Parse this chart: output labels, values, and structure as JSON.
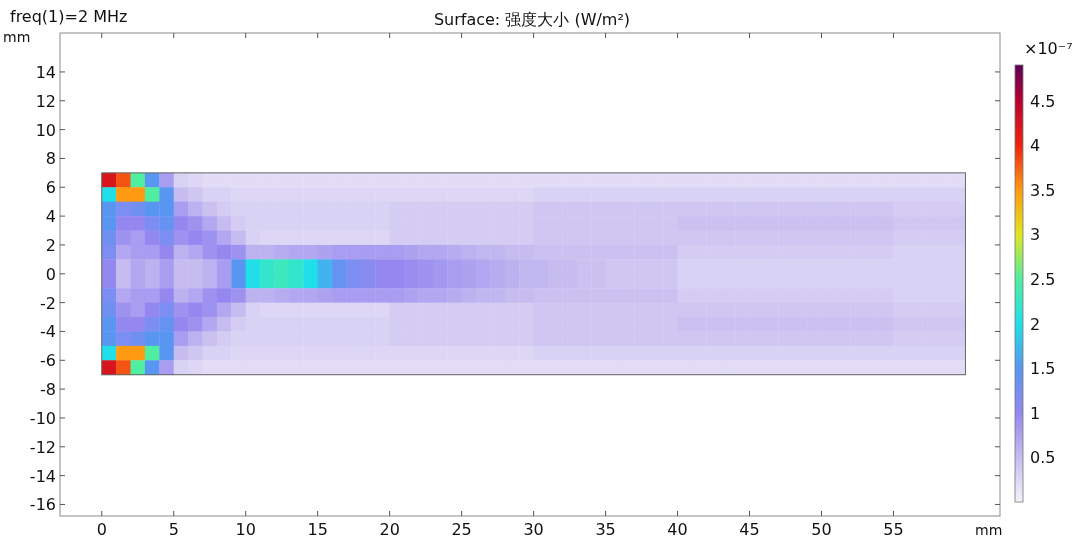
{
  "chart_data": {
    "type": "heatmap",
    "title": "Surface: 强度大小 (W/m²)",
    "subtitle": "freq(1)=2 MHz",
    "xlabel": "mm",
    "ylabel": "mm",
    "clabel": "×10⁻⁷",
    "xlim": [
      -2.9,
      62.4
    ],
    "ylim": [
      -16.8,
      16.7
    ],
    "xticks": [
      0,
      5,
      10,
      15,
      20,
      25,
      30,
      35,
      40,
      45,
      50,
      55
    ],
    "yticks": [
      -16,
      -14,
      -12,
      -10,
      -8,
      -6,
      -4,
      -2,
      0,
      2,
      4,
      6,
      8,
      10,
      12,
      14
    ],
    "clim": [
      0,
      4.9
    ],
    "cticks": [
      0.5,
      1,
      1.5,
      2,
      2.5,
      3,
      3.5,
      4,
      4.5
    ],
    "x": [
      0.5,
      1.5,
      2.5,
      3.5,
      4.5,
      5.5,
      6.5,
      7.5,
      8.5,
      9.5,
      10.5,
      11.5,
      12.5,
      13.5,
      14.5,
      15.5,
      16.5,
      17.5,
      18.5,
      19.5,
      20.5,
      21.5,
      22.5,
      23.5,
      24.5,
      25.5,
      26.5,
      27.5,
      28.5,
      29.5,
      30.5,
      31.5,
      32.5,
      33.5,
      34.5,
      35.5,
      36.5,
      37.5,
      38.5,
      39.5,
      40.5,
      41.5,
      42.5,
      43.5,
      44.5,
      45.5,
      46.5,
      47.5,
      48.5,
      49.5,
      50.5,
      51.5,
      52.5,
      53.5,
      54.5,
      55.5,
      56.5,
      57.5,
      58.5,
      59.5
    ],
    "y": [
      6.5,
      5.5,
      4.5,
      3.5,
      2.5,
      1.5,
      0.5,
      -0.5,
      -1.5,
      -2.5,
      -3.5,
      -4.5,
      -5.5,
      -6.5
    ],
    "cells": [
      [
        4.2,
        3.8,
        2.5,
        1.5,
        0.8,
        0.3,
        0.25,
        0.2,
        0.2,
        0.2,
        0.2,
        0.2,
        0.2,
        0.2,
        0.2,
        0.2,
        0.2,
        0.2,
        0.2,
        0.2,
        0.2,
        0.2,
        0.2,
        0.2,
        0.2,
        0.2,
        0.2,
        0.2,
        0.2,
        0.2,
        0.2,
        0.2,
        0.2,
        0.2,
        0.2,
        0.2,
        0.2,
        0.2,
        0.2,
        0.2,
        0.2,
        0.2,
        0.2,
        0.2,
        0.2,
        0.2,
        0.2,
        0.2,
        0.2,
        0.2,
        0.2,
        0.2,
        0.2,
        0.2,
        0.2,
        0.2,
        0.2,
        0.2,
        0.2,
        0.2
      ],
      [
        2.0,
        3.5,
        3.5,
        2.5,
        1.5,
        0.5,
        0.4,
        0.3,
        0.3,
        0.25,
        0.25,
        0.25,
        0.25,
        0.25,
        0.25,
        0.25,
        0.25,
        0.25,
        0.25,
        0.25,
        0.25,
        0.25,
        0.25,
        0.25,
        0.25,
        0.25,
        0.25,
        0.25,
        0.25,
        0.25,
        0.3,
        0.3,
        0.3,
        0.3,
        0.3,
        0.3,
        0.3,
        0.3,
        0.3,
        0.3,
        0.3,
        0.3,
        0.3,
        0.3,
        0.3,
        0.3,
        0.3,
        0.3,
        0.3,
        0.3,
        0.3,
        0.3,
        0.3,
        0.3,
        0.3,
        0.3,
        0.3,
        0.3,
        0.3,
        0.3
      ],
      [
        1.5,
        1.2,
        1.3,
        1.5,
        1.5,
        0.8,
        0.6,
        0.45,
        0.35,
        0.3,
        0.3,
        0.3,
        0.3,
        0.3,
        0.3,
        0.3,
        0.3,
        0.3,
        0.3,
        0.3,
        0.35,
        0.35,
        0.35,
        0.35,
        0.35,
        0.35,
        0.35,
        0.35,
        0.35,
        0.35,
        0.4,
        0.4,
        0.4,
        0.4,
        0.4,
        0.4,
        0.4,
        0.4,
        0.4,
        0.4,
        0.4,
        0.4,
        0.4,
        0.4,
        0.4,
        0.4,
        0.4,
        0.4,
        0.4,
        0.4,
        0.4,
        0.4,
        0.4,
        0.4,
        0.4,
        0.35,
        0.35,
        0.35,
        0.35,
        0.35
      ],
      [
        1.5,
        1.0,
        1.0,
        1.2,
        1.4,
        1.0,
        0.9,
        0.7,
        0.5,
        0.35,
        0.3,
        0.3,
        0.3,
        0.3,
        0.3,
        0.3,
        0.3,
        0.3,
        0.3,
        0.3,
        0.35,
        0.35,
        0.35,
        0.35,
        0.35,
        0.35,
        0.35,
        0.35,
        0.35,
        0.35,
        0.4,
        0.4,
        0.4,
        0.4,
        0.4,
        0.4,
        0.4,
        0.4,
        0.4,
        0.4,
        0.45,
        0.45,
        0.45,
        0.45,
        0.45,
        0.45,
        0.45,
        0.45,
        0.45,
        0.45,
        0.45,
        0.45,
        0.45,
        0.45,
        0.45,
        0.4,
        0.4,
        0.4,
        0.4,
        0.4
      ],
      [
        1.3,
        0.9,
        0.8,
        1.0,
        1.2,
        0.9,
        1.0,
        0.9,
        0.7,
        0.5,
        0.3,
        0.25,
        0.25,
        0.25,
        0.25,
        0.25,
        0.25,
        0.25,
        0.25,
        0.25,
        0.35,
        0.35,
        0.35,
        0.35,
        0.35,
        0.35,
        0.35,
        0.35,
        0.35,
        0.35,
        0.4,
        0.4,
        0.4,
        0.4,
        0.4,
        0.4,
        0.4,
        0.4,
        0.4,
        0.4,
        0.4,
        0.4,
        0.4,
        0.4,
        0.4,
        0.4,
        0.4,
        0.4,
        0.4,
        0.4,
        0.4,
        0.4,
        0.4,
        0.4,
        0.4,
        0.35,
        0.35,
        0.35,
        0.35,
        0.35
      ],
      [
        1.2,
        0.7,
        0.8,
        0.8,
        1.0,
        0.6,
        0.7,
        0.9,
        1.0,
        0.9,
        0.6,
        0.6,
        0.65,
        0.7,
        0.7,
        0.75,
        0.8,
        0.8,
        0.8,
        0.8,
        0.8,
        0.75,
        0.7,
        0.7,
        0.65,
        0.6,
        0.55,
        0.55,
        0.5,
        0.5,
        0.45,
        0.45,
        0.45,
        0.45,
        0.45,
        0.45,
        0.45,
        0.45,
        0.45,
        0.45,
        0.35,
        0.35,
        0.35,
        0.35,
        0.35,
        0.35,
        0.35,
        0.35,
        0.35,
        0.35,
        0.35,
        0.35,
        0.35,
        0.35,
        0.35,
        0.3,
        0.3,
        0.3,
        0.3,
        0.3
      ],
      [
        1.0,
        0.5,
        0.7,
        0.6,
        0.8,
        0.5,
        0.5,
        0.6,
        0.8,
        1.5,
        2.0,
        2.2,
        2.3,
        2.2,
        2.0,
        1.7,
        1.4,
        1.2,
        1.1,
        1.0,
        1.0,
        0.95,
        0.9,
        0.85,
        0.8,
        0.75,
        0.7,
        0.65,
        0.6,
        0.55,
        0.55,
        0.5,
        0.5,
        0.45,
        0.45,
        0.4,
        0.4,
        0.4,
        0.4,
        0.4,
        0.3,
        0.3,
        0.3,
        0.3,
        0.3,
        0.3,
        0.3,
        0.3,
        0.3,
        0.3,
        0.3,
        0.3,
        0.3,
        0.3,
        0.3,
        0.3,
        0.3,
        0.3,
        0.3,
        0.3
      ],
      [
        1.0,
        0.5,
        0.7,
        0.6,
        0.8,
        0.5,
        0.5,
        0.6,
        0.8,
        1.5,
        2.0,
        2.2,
        2.3,
        2.2,
        2.0,
        1.7,
        1.4,
        1.2,
        1.1,
        1.0,
        1.0,
        0.95,
        0.9,
        0.85,
        0.8,
        0.75,
        0.7,
        0.65,
        0.6,
        0.55,
        0.55,
        0.5,
        0.5,
        0.45,
        0.45,
        0.4,
        0.4,
        0.4,
        0.4,
        0.4,
        0.3,
        0.3,
        0.3,
        0.3,
        0.3,
        0.3,
        0.3,
        0.3,
        0.3,
        0.3,
        0.3,
        0.3,
        0.3,
        0.3,
        0.3,
        0.3,
        0.3,
        0.3,
        0.3,
        0.3
      ],
      [
        1.2,
        0.7,
        0.8,
        0.8,
        1.0,
        0.6,
        0.7,
        0.9,
        1.0,
        0.9,
        0.6,
        0.6,
        0.65,
        0.7,
        0.7,
        0.75,
        0.8,
        0.8,
        0.8,
        0.8,
        0.8,
        0.75,
        0.7,
        0.7,
        0.65,
        0.6,
        0.55,
        0.55,
        0.5,
        0.5,
        0.45,
        0.45,
        0.45,
        0.45,
        0.45,
        0.45,
        0.45,
        0.45,
        0.45,
        0.45,
        0.35,
        0.35,
        0.35,
        0.35,
        0.35,
        0.35,
        0.35,
        0.35,
        0.35,
        0.35,
        0.35,
        0.35,
        0.35,
        0.35,
        0.35,
        0.3,
        0.3,
        0.3,
        0.3,
        0.3
      ],
      [
        1.3,
        0.9,
        0.8,
        1.0,
        1.2,
        0.9,
        1.0,
        0.9,
        0.7,
        0.5,
        0.3,
        0.25,
        0.25,
        0.25,
        0.25,
        0.25,
        0.25,
        0.25,
        0.25,
        0.25,
        0.35,
        0.35,
        0.35,
        0.35,
        0.35,
        0.35,
        0.35,
        0.35,
        0.35,
        0.35,
        0.4,
        0.4,
        0.4,
        0.4,
        0.4,
        0.4,
        0.4,
        0.4,
        0.4,
        0.4,
        0.4,
        0.4,
        0.4,
        0.4,
        0.4,
        0.4,
        0.4,
        0.4,
        0.4,
        0.4,
        0.4,
        0.4,
        0.4,
        0.4,
        0.4,
        0.35,
        0.35,
        0.35,
        0.35,
        0.35
      ],
      [
        1.5,
        1.0,
        1.0,
        1.2,
        1.4,
        1.0,
        0.9,
        0.7,
        0.5,
        0.35,
        0.3,
        0.3,
        0.3,
        0.3,
        0.3,
        0.3,
        0.3,
        0.3,
        0.3,
        0.3,
        0.35,
        0.35,
        0.35,
        0.35,
        0.35,
        0.35,
        0.35,
        0.35,
        0.35,
        0.35,
        0.4,
        0.4,
        0.4,
        0.4,
        0.4,
        0.4,
        0.4,
        0.4,
        0.4,
        0.4,
        0.45,
        0.45,
        0.45,
        0.45,
        0.45,
        0.45,
        0.45,
        0.45,
        0.45,
        0.45,
        0.45,
        0.45,
        0.45,
        0.45,
        0.45,
        0.4,
        0.4,
        0.4,
        0.4,
        0.4
      ],
      [
        1.5,
        1.2,
        1.3,
        1.5,
        1.5,
        0.8,
        0.6,
        0.45,
        0.35,
        0.3,
        0.3,
        0.3,
        0.3,
        0.3,
        0.3,
        0.3,
        0.3,
        0.3,
        0.3,
        0.3,
        0.35,
        0.35,
        0.35,
        0.35,
        0.35,
        0.35,
        0.35,
        0.35,
        0.35,
        0.35,
        0.4,
        0.4,
        0.4,
        0.4,
        0.4,
        0.4,
        0.4,
        0.4,
        0.4,
        0.4,
        0.4,
        0.4,
        0.4,
        0.4,
        0.4,
        0.4,
        0.4,
        0.4,
        0.4,
        0.4,
        0.4,
        0.4,
        0.4,
        0.4,
        0.4,
        0.35,
        0.35,
        0.35,
        0.35,
        0.35
      ],
      [
        2.0,
        3.5,
        3.5,
        2.5,
        1.5,
        0.5,
        0.4,
        0.3,
        0.3,
        0.25,
        0.25,
        0.25,
        0.25,
        0.25,
        0.25,
        0.25,
        0.25,
        0.25,
        0.25,
        0.25,
        0.25,
        0.25,
        0.25,
        0.25,
        0.25,
        0.25,
        0.25,
        0.25,
        0.25,
        0.25,
        0.3,
        0.3,
        0.3,
        0.3,
        0.3,
        0.3,
        0.3,
        0.3,
        0.3,
        0.3,
        0.3,
        0.3,
        0.3,
        0.3,
        0.3,
        0.3,
        0.3,
        0.3,
        0.3,
        0.3,
        0.3,
        0.3,
        0.3,
        0.3,
        0.3,
        0.3,
        0.3,
        0.3,
        0.3,
        0.3
      ],
      [
        4.2,
        3.8,
        2.5,
        1.5,
        0.8,
        0.3,
        0.25,
        0.2,
        0.2,
        0.2,
        0.2,
        0.2,
        0.2,
        0.2,
        0.2,
        0.2,
        0.2,
        0.2,
        0.2,
        0.2,
        0.2,
        0.2,
        0.2,
        0.2,
        0.2,
        0.2,
        0.2,
        0.2,
        0.2,
        0.2,
        0.2,
        0.2,
        0.2,
        0.2,
        0.2,
        0.2,
        0.2,
        0.2,
        0.2,
        0.2,
        0.2,
        0.2,
        0.2,
        0.2,
        0.2,
        0.2,
        0.2,
        0.2,
        0.2,
        0.2,
        0.2,
        0.2,
        0.2,
        0.2,
        0.2,
        0.2,
        0.2,
        0.2,
        0.2,
        0.2
      ]
    ]
  }
}
